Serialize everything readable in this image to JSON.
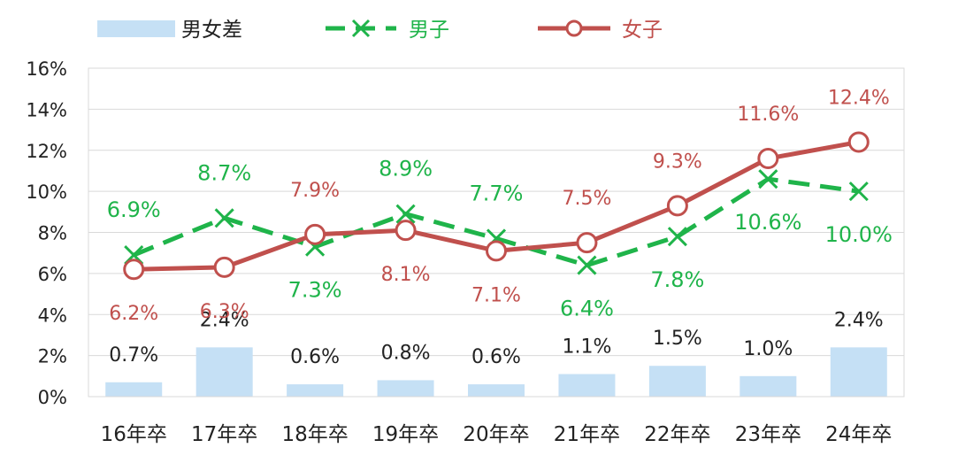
{
  "chart_data": {
    "type": "bar",
    "categories": [
      "16年卒",
      "17年卒",
      "18年卒",
      "19年卒",
      "20年卒",
      "21年卒",
      "22年卒",
      "23年卒",
      "24年卒"
    ],
    "ylim": [
      0,
      16
    ],
    "yticks": [
      0,
      2,
      4,
      6,
      8,
      10,
      12,
      14,
      16
    ],
    "ytick_labels": [
      "0%",
      "2%",
      "4%",
      "6%",
      "8%",
      "10%",
      "12%",
      "14%",
      "16%"
    ],
    "grid": true,
    "legend_position": "top",
    "series": [
      {
        "name": "男女差",
        "type": "bar",
        "color": "#c5e0f5",
        "values": [
          0.7,
          2.4,
          0.6,
          0.8,
          0.6,
          1.1,
          1.5,
          1.0,
          2.4
        ],
        "labels": [
          "0.7%",
          "2.4%",
          "0.6%",
          "0.8%",
          "0.6%",
          "1.1%",
          "1.5%",
          "1.0%",
          "2.4%"
        ],
        "label_color": "#222222"
      },
      {
        "name": "男子",
        "type": "line",
        "style": "dashed",
        "marker": "x",
        "color": "#1fb44a",
        "values": [
          6.9,
          8.7,
          7.3,
          8.9,
          7.7,
          6.4,
          7.8,
          10.6,
          10.0
        ],
        "labels": [
          "6.9%",
          "8.7%",
          "7.3%",
          "8.9%",
          "7.7%",
          "6.4%",
          "7.8%",
          "10.6%",
          "10.0%"
        ]
      },
      {
        "name": "女子",
        "type": "line",
        "style": "solid",
        "marker": "circle",
        "color": "#c0504d",
        "values": [
          6.2,
          6.3,
          7.9,
          8.1,
          7.1,
          7.5,
          9.3,
          11.6,
          12.4
        ],
        "labels": [
          "6.2%",
          "6.3%",
          "7.9%",
          "8.1%",
          "7.1%",
          "7.5%",
          "9.3%",
          "11.6%",
          "12.4%"
        ]
      }
    ]
  }
}
